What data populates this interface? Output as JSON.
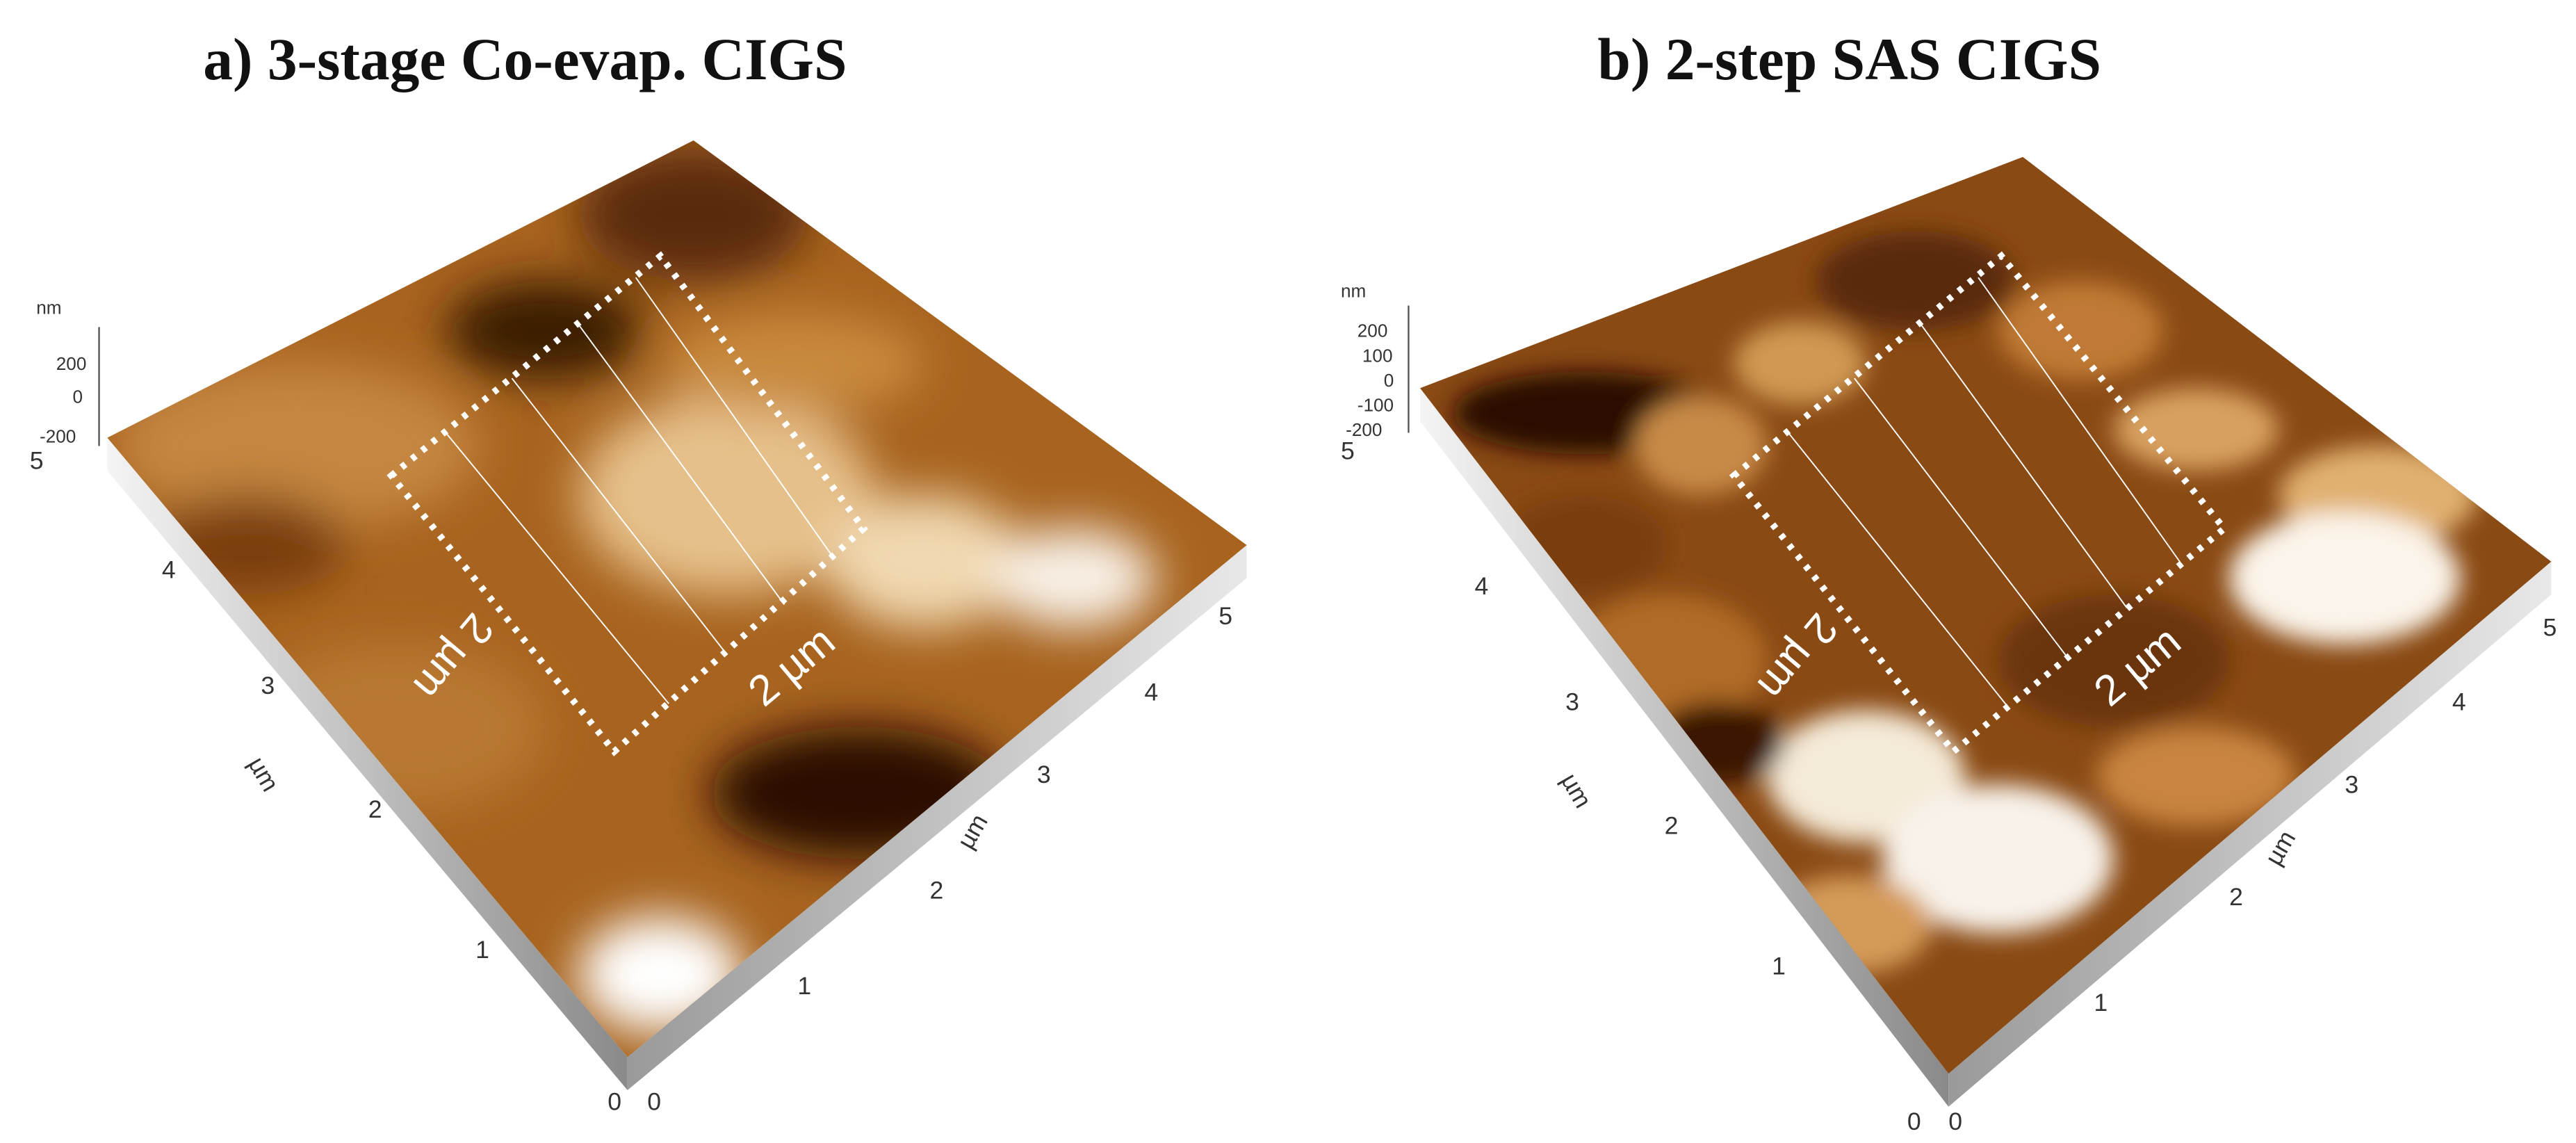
{
  "panels": [
    {
      "title": "a) 3-stage Co-evap. CIGS",
      "z_unit": "nm",
      "z_ticks": [
        "200",
        "0",
        "-200"
      ],
      "y_ticks": [
        "0",
        "1",
        "2",
        "3",
        "4",
        "5"
      ],
      "y_unit": "µm",
      "x_ticks": [
        "0",
        "1",
        "2",
        "3",
        "4",
        "5"
      ],
      "x_unit": "µm",
      "box_labels": [
        "2 µm",
        "2 µm"
      ]
    },
    {
      "title": "b) 2-step SAS CIGS",
      "z_unit": "nm",
      "z_ticks": [
        "200",
        "100",
        "0",
        "-100",
        "-200"
      ],
      "y_ticks": [
        "0",
        "1",
        "2",
        "3",
        "4",
        "5"
      ],
      "y_unit": "µm",
      "x_ticks": [
        "0",
        "1",
        "2",
        "3",
        "4",
        "5"
      ],
      "x_unit": "µm",
      "box_labels": [
        "2 µm",
        "2 µm"
      ]
    }
  ]
}
